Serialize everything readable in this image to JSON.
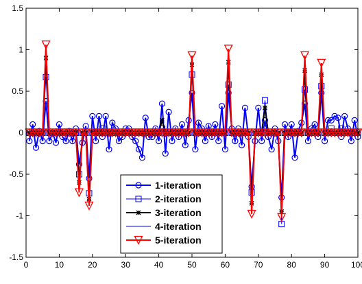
{
  "chart_data": {
    "type": "line",
    "title": "",
    "xlabel": "",
    "ylabel": "",
    "xlim": [
      0,
      100
    ],
    "ylim": [
      -1.5,
      1.5
    ],
    "x_ticks": [
      0,
      10,
      20,
      30,
      40,
      50,
      60,
      70,
      80,
      90,
      100
    ],
    "x_tick_labels": [
      "0",
      "10",
      "20",
      "30",
      "40",
      "50",
      "60",
      "70",
      "80",
      "90",
      "100"
    ],
    "y_ticks": [
      -1.5,
      -1,
      -0.5,
      0,
      0.5,
      1,
      1.5
    ],
    "y_tick_labels": [
      "-1.5",
      "-1",
      "-0.5",
      "0",
      "0.5",
      "1",
      "1.5"
    ],
    "grid": false,
    "legend_position": "bottom-center",
    "x": [
      1,
      2,
      3,
      4,
      5,
      6,
      7,
      8,
      9,
      10,
      11,
      12,
      13,
      14,
      15,
      16,
      17,
      18,
      19,
      20,
      21,
      22,
      23,
      24,
      25,
      26,
      27,
      28,
      29,
      30,
      31,
      32,
      33,
      34,
      35,
      36,
      37,
      38,
      39,
      40,
      41,
      42,
      43,
      44,
      45,
      46,
      47,
      48,
      49,
      50,
      51,
      52,
      53,
      54,
      55,
      56,
      57,
      58,
      59,
      60,
      61,
      62,
      63,
      64,
      65,
      66,
      67,
      68,
      69,
      70,
      71,
      72,
      73,
      74,
      75,
      76,
      77,
      78,
      79,
      80,
      81,
      82,
      83,
      84,
      85,
      86,
      87,
      88,
      89,
      90,
      91,
      92,
      93,
      94,
      95,
      96,
      97,
      98,
      99,
      100
    ],
    "series": [
      {
        "name": "1-iteration",
        "color": "#0000ff",
        "marker": "circle",
        "values": [
          -0.1,
          0.1,
          -0.18,
          0.02,
          -0.1,
          0.38,
          -0.1,
          0.0,
          -0.12,
          0.1,
          -0.05,
          -0.1,
          0.02,
          -0.1,
          0.05,
          -0.38,
          -0.12,
          0.08,
          -0.55,
          0.2,
          -0.1,
          0.2,
          -0.05,
          0.2,
          -0.2,
          0.12,
          0.05,
          -0.1,
          -0.05,
          0.05,
          0.05,
          -0.05,
          -0.1,
          -0.2,
          -0.3,
          0.18,
          -0.05,
          -0.05,
          0.05,
          -0.1,
          0.35,
          -0.25,
          0.25,
          -0.1,
          0.05,
          -0.05,
          0.1,
          -0.15,
          0.15,
          0.48,
          -0.2,
          0.12,
          0.05,
          -0.1,
          0.08,
          -0.05,
          0.1,
          -0.1,
          0.32,
          -0.2,
          0.48,
          0.05,
          -0.1,
          0.05,
          -0.15,
          0.3,
          -0.05,
          -0.65,
          -0.1,
          0.3,
          -0.1,
          0.15,
          -0.05,
          -0.2,
          0.05,
          -0.1,
          -0.78,
          0.1,
          -0.05,
          0.1,
          -0.3,
          0.02,
          0.12,
          0.35,
          -0.1,
          0.05,
          0.1,
          -0.05,
          0.48,
          -0.1,
          0.15,
          0.15,
          0.2,
          0.18,
          -0.05,
          0.2,
          0.05,
          -0.1,
          0.15,
          -0.05
        ]
      },
      {
        "name": "2-iteration",
        "color": "#0000ff",
        "marker": "square",
        "values": [
          0,
          0,
          0,
          0,
          0,
          0.67,
          0,
          0,
          0,
          0,
          0,
          0,
          0,
          0,
          0,
          -0.5,
          0,
          0,
          -0.73,
          0,
          0,
          0,
          0.05,
          0,
          0,
          0,
          0,
          0,
          0,
          0,
          0,
          0,
          0,
          0,
          0,
          0,
          0,
          0,
          0,
          0,
          0.05,
          0,
          0,
          0,
          0,
          0,
          0,
          0,
          0,
          0.7,
          0,
          0,
          0,
          0,
          0,
          0,
          0,
          0,
          0,
          0,
          0.58,
          0,
          0,
          0,
          0,
          0,
          0,
          -0.72,
          0,
          0,
          0,
          0.39,
          0,
          0,
          0,
          0,
          -1.1,
          0,
          0,
          0,
          0,
          0,
          0,
          0.52,
          0,
          0,
          0,
          0,
          0.56,
          0,
          0,
          0.05,
          0,
          0,
          0.05,
          0,
          0,
          0,
          0,
          0
        ]
      },
      {
        "name": "3-iteration",
        "color": "#000000",
        "marker": "star",
        "values": [
          0,
          0,
          0,
          0,
          0,
          0.9,
          0,
          0,
          0,
          0,
          0,
          0,
          0,
          0,
          0,
          -0.6,
          0,
          0,
          -0.8,
          0,
          0,
          0,
          0,
          0,
          0,
          0,
          0,
          0,
          0,
          0,
          0,
          0,
          0,
          0,
          0,
          0,
          0,
          0,
          0,
          0,
          0.15,
          0,
          0,
          0,
          0,
          0,
          0,
          0,
          0,
          0.82,
          0,
          0,
          0,
          0,
          0,
          0,
          0,
          0,
          0,
          0,
          0.85,
          0,
          0,
          0,
          0,
          0,
          0,
          -0.85,
          0,
          0,
          0,
          0.3,
          0,
          0,
          0,
          0,
          -0.95,
          0,
          0,
          0,
          0,
          0,
          0,
          0.75,
          0,
          0,
          0,
          0,
          0.7,
          0,
          0,
          0,
          0,
          0,
          0,
          0,
          0,
          0,
          0,
          0
        ]
      },
      {
        "name": "4-iteration",
        "color": "#0000ff",
        "marker": "none",
        "values": [
          0,
          0,
          0,
          0,
          0,
          1.0,
          0,
          0,
          0,
          0,
          0,
          0,
          0,
          0,
          0,
          -0.68,
          0,
          0,
          -0.86,
          0,
          0,
          0,
          0,
          0,
          0,
          0,
          0,
          0,
          0,
          0,
          0,
          0,
          0,
          0,
          0,
          0,
          0,
          0,
          0,
          0,
          0,
          0,
          0,
          0,
          0,
          0,
          0,
          0,
          0,
          0.9,
          0,
          0,
          0,
          0,
          0,
          0,
          0,
          0,
          0,
          0,
          0.95,
          0,
          0,
          0,
          0,
          0,
          0,
          -0.93,
          0,
          0,
          0,
          0.1,
          0,
          0,
          0,
          0,
          -1.0,
          0,
          0,
          0,
          0,
          0,
          0,
          0.88,
          0,
          0,
          0,
          0,
          0.8,
          0,
          0,
          0,
          0,
          0,
          0,
          0,
          0,
          0,
          0,
          0
        ]
      },
      {
        "name": "5-iteration",
        "color": "#ff0000",
        "marker": "triangle-down",
        "values": [
          0,
          0,
          0,
          0,
          0,
          1.06,
          0,
          0,
          0,
          0,
          0,
          0,
          0,
          0,
          0,
          -0.72,
          0,
          0,
          -0.88,
          0,
          0,
          0,
          0,
          0,
          0,
          0,
          0,
          0,
          0,
          0,
          0,
          0,
          0,
          0,
          0,
          0,
          0,
          0,
          0,
          0,
          0,
          0,
          0,
          0,
          0,
          0,
          0,
          0,
          0,
          0.93,
          0,
          0,
          0,
          0,
          0,
          0,
          0,
          0,
          0,
          0,
          1.01,
          0,
          0,
          0,
          0,
          0,
          0,
          -0.98,
          0,
          0,
          0,
          0,
          0,
          0,
          0,
          0,
          -1.02,
          0,
          0,
          0,
          0,
          0,
          0,
          0.93,
          0,
          0,
          0,
          0,
          0.84,
          0,
          0,
          0,
          0,
          0,
          0,
          0,
          0,
          0,
          0,
          0
        ]
      }
    ]
  }
}
